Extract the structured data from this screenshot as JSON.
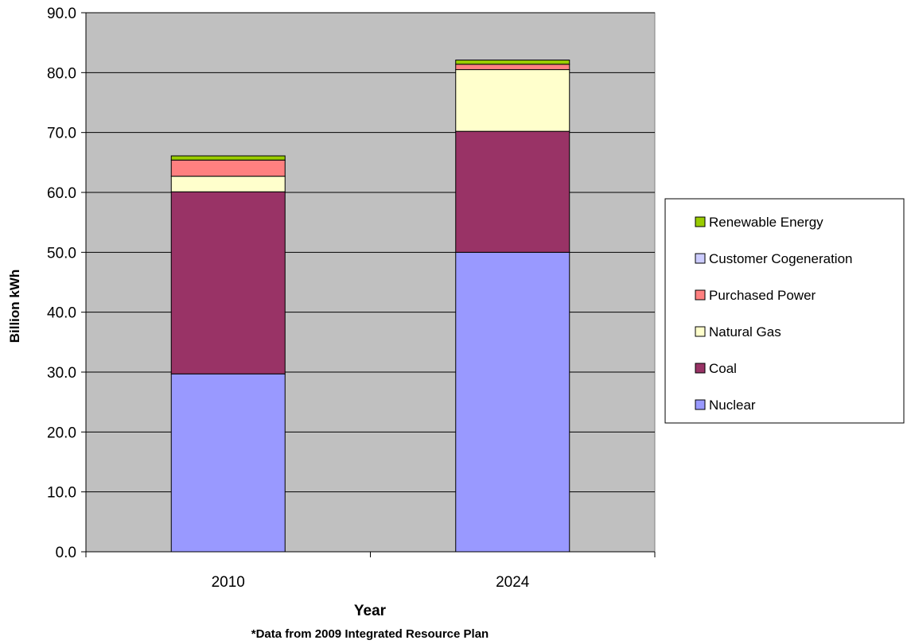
{
  "chart_data": {
    "type": "bar",
    "stacked": true,
    "categories": [
      "2010",
      "2024"
    ],
    "series": [
      {
        "name": "Nuclear",
        "values": [
          29.7,
          50.0
        ],
        "color": "#9999ff"
      },
      {
        "name": "Coal",
        "values": [
          30.4,
          20.2
        ],
        "color": "#993366"
      },
      {
        "name": "Natural Gas",
        "values": [
          2.6,
          10.3
        ],
        "color": "#ffffcc"
      },
      {
        "name": "Purchased Power",
        "values": [
          2.7,
          0.9
        ],
        "color": "#ff8080"
      },
      {
        "name": "Customer Cogeneration",
        "values": [
          0.0,
          0.0
        ],
        "color": "#ccccff"
      },
      {
        "name": "Renewable Energy",
        "values": [
          0.7,
          0.7
        ],
        "color": "#99cc00"
      }
    ],
    "xlabel": "Year",
    "ylabel": "Billion kWh",
    "note": "*Data from 2009 Integrated Resource Plan",
    "ylim": [
      0,
      90
    ],
    "yticks": [
      "0.0",
      "10.0",
      "20.0",
      "30.0",
      "40.0",
      "50.0",
      "60.0",
      "70.0",
      "80.0",
      "90.0"
    ],
    "grid": true,
    "legend_position": "right",
    "plot_background": "#c0c0c0"
  }
}
